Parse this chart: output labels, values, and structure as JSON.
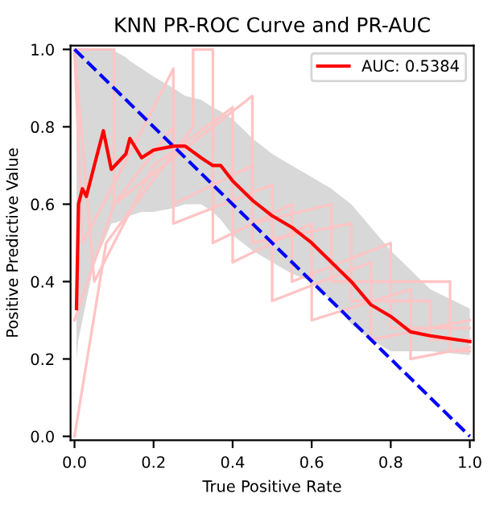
{
  "chart_data": {
    "type": "line",
    "title": "KNN PR-ROC Curve and PR-AUC",
    "xlabel": "True Positive Rate",
    "ylabel": "Positive Predictive Value",
    "xlim": [
      -0.01,
      1.01
    ],
    "ylim": [
      -0.01,
      1.01
    ],
    "xticks": [
      {
        "value": 0,
        "label": "0.0"
      },
      {
        "value": 0.2,
        "label": "0.2"
      },
      {
        "value": 0.4,
        "label": "0.4"
      },
      {
        "value": 0.6,
        "label": "0.6"
      },
      {
        "value": 0.8,
        "label": "0.8"
      },
      {
        "value": 1,
        "label": "1.0"
      }
    ],
    "yticks": [
      {
        "value": 0,
        "label": "0.0"
      },
      {
        "value": 0.2,
        "label": "0.2"
      },
      {
        "value": 0.4,
        "label": "0.4"
      },
      {
        "value": 0.6,
        "label": "0.6"
      },
      {
        "value": 0.8,
        "label": "0.8"
      },
      {
        "value": 1,
        "label": "1.0"
      }
    ],
    "grid": false,
    "legend": "top right",
    "series": [
      {
        "color": "#ffc4c4",
        "x": [
          0,
          0.1,
          0.1,
          0.25,
          0.25,
          0.45,
          0.45,
          0.7,
          0.7,
          0.9,
          0.9,
          1
        ],
        "values": [
          1,
          1,
          0.6,
          0.8,
          0.6,
          0.7,
          0.5,
          0.55,
          0.35,
          0.35,
          0.25,
          0.25
        ]
      },
      {
        "color": "#ffc4c4",
        "x": [
          0,
          0.08,
          0.3,
          0.3,
          0.35,
          0.35,
          0.55,
          0.55,
          0.8,
          0.8,
          1
        ],
        "values": [
          0,
          0.5,
          0.8,
          1,
          1,
          0.5,
          0.6,
          0.4,
          0.5,
          0.28,
          0.28
        ]
      },
      {
        "color": "#ffc4c4",
        "x": [
          0,
          0.05,
          0.2,
          0.4,
          0.4,
          0.6,
          0.6,
          0.85,
          0.85,
          1
        ],
        "values": [
          1,
          0.4,
          0.7,
          0.85,
          0.45,
          0.55,
          0.3,
          0.38,
          0.2,
          0.23
        ]
      },
      {
        "color": "#ffc4c4",
        "x": [
          0,
          0.02,
          0.15,
          0.25,
          0.25,
          0.5,
          0.5,
          0.75,
          0.75,
          1
        ],
        "values": [
          1,
          0.5,
          0.75,
          0.95,
          0.55,
          0.65,
          0.35,
          0.45,
          0.25,
          0.3
        ]
      },
      {
        "color": "#ffc4c4",
        "x": [
          0,
          0.1,
          0.45,
          0.45,
          0.65,
          0.65,
          0.95,
          0.95,
          1
        ],
        "values": [
          0.3,
          0.6,
          0.88,
          0.55,
          0.6,
          0.4,
          0.4,
          0.22,
          0.22
        ]
      },
      {
        "name": "AUC: 0.5384",
        "color": "#ff0000",
        "x": [
          0.005,
          0.01,
          0.02,
          0.03,
          0.05,
          0.073,
          0.093,
          0.13,
          0.14,
          0.17,
          0.2,
          0.25,
          0.28,
          0.32,
          0.35,
          0.37,
          0.4,
          0.45,
          0.5,
          0.55,
          0.6,
          0.65,
          0.7,
          0.75,
          0.8,
          0.85,
          0.9,
          1.0
        ],
        "values": [
          0.33,
          0.6,
          0.64,
          0.62,
          0.7,
          0.79,
          0.69,
          0.73,
          0.77,
          0.72,
          0.74,
          0.75,
          0.75,
          0.72,
          0.7,
          0.7,
          0.66,
          0.61,
          0.57,
          0.54,
          0.5,
          0.45,
          0.4,
          0.34,
          0.31,
          0.27,
          0.26,
          0.245
        ],
        "lower": [
          0.2,
          0.25,
          0.3,
          0.35,
          0.45,
          0.5,
          0.55,
          0.56,
          0.57,
          0.58,
          0.58,
          0.59,
          0.6,
          0.6,
          0.58,
          0.56,
          0.52,
          0.48,
          0.45,
          0.42,
          0.4,
          0.35,
          0.29,
          0.25,
          0.22,
          0.22,
          0.22,
          0.21
        ],
        "upper": [
          1,
          1,
          1,
          1,
          1,
          1,
          1,
          0.98,
          0.97,
          0.95,
          0.93,
          0.9,
          0.88,
          0.87,
          0.85,
          0.84,
          0.82,
          0.77,
          0.73,
          0.7,
          0.67,
          0.64,
          0.6,
          0.54,
          0.48,
          0.43,
          0.38,
          0.33
        ]
      },
      {
        "color": "#0000ff",
        "line_style": "dashed",
        "x": [
          0,
          1
        ],
        "values": [
          1,
          0
        ]
      }
    ]
  }
}
